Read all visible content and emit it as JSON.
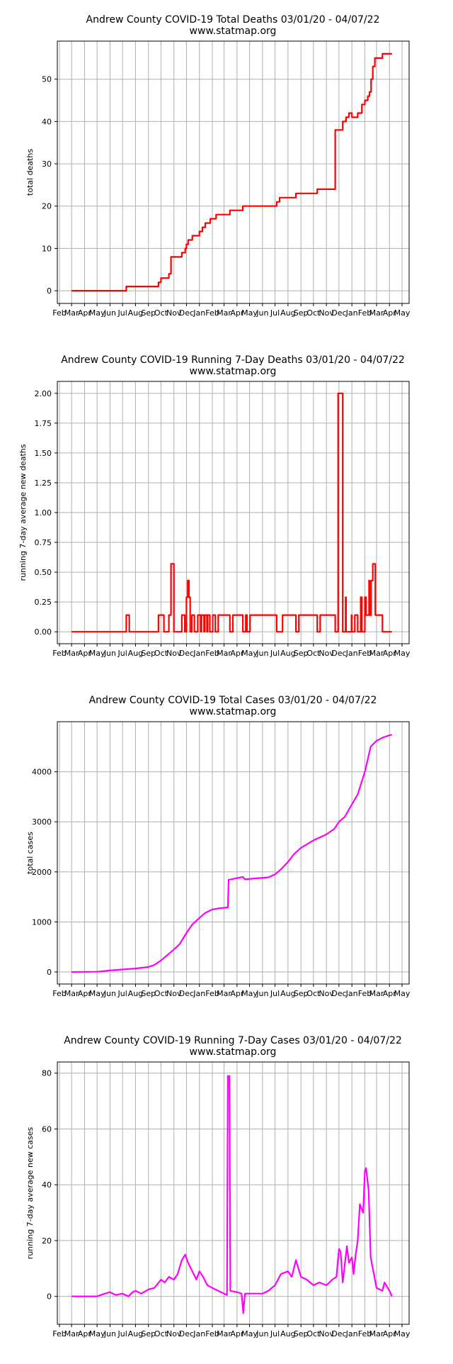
{
  "figure": {
    "colors": {
      "deaths": "#ff0000",
      "cases": "#ff00ff",
      "grid": "#b0b0b0",
      "axis": "#000000"
    }
  },
  "chart_data": [
    {
      "type": "line",
      "title": "Andrew County COVID-19 Total Deaths 03/01/20 - 04/07/22",
      "subtitle": "www.statmap.org",
      "xlabel": "",
      "ylabel": "total deaths",
      "ylim": [
        -3,
        59
      ],
      "yticks": [
        "0",
        "10",
        "20",
        "30",
        "40",
        "50"
      ],
      "ytick_values": [
        0,
        10,
        20,
        30,
        40,
        50
      ],
      "xticks": [
        "Feb",
        "Mar",
        "Apr",
        "May",
        "Jun",
        "Jul",
        "Aug",
        "Sep",
        "Oct",
        "Nov",
        "Dec",
        "Jan",
        "Feb",
        "Mar",
        "Apr",
        "May",
        "Jun",
        "Jul",
        "Aug",
        "Sep",
        "Oct",
        "Nov",
        "Dec",
        "Jan",
        "Feb",
        "Mar",
        "Apr",
        "May"
      ],
      "grid": true,
      "color": "#ff0000",
      "step": true,
      "series": [
        {
          "x": [
            "2020-03-01",
            "2020-07-10",
            "2020-09-25",
            "2020-10-01",
            "2020-10-20",
            "2020-10-25",
            "2020-11-20",
            "2020-11-28",
            "2020-12-01",
            "2020-12-05",
            "2020-12-15",
            "2021-01-01",
            "2021-01-08",
            "2021-01-15",
            "2021-01-27",
            "2021-02-10",
            "2021-03-15",
            "2021-04-15",
            "2021-04-25",
            "2021-07-05",
            "2021-07-12",
            "2021-08-20",
            "2021-10-10",
            "2021-11-22",
            "2021-12-10",
            "2021-12-18",
            "2021-12-25",
            "2022-01-01",
            "2022-01-15",
            "2022-01-25",
            "2022-02-01",
            "2022-02-08",
            "2022-02-12",
            "2022-02-16",
            "2022-02-20",
            "2022-02-25",
            "2022-03-15",
            "2022-04-07"
          ],
          "values": [
            0,
            1,
            2,
            3,
            4,
            8,
            9,
            10,
            11,
            12,
            13,
            14,
            15,
            16,
            17,
            18,
            19,
            20,
            20,
            21,
            22,
            23,
            24,
            38,
            40,
            41,
            42,
            41,
            42,
            44,
            45,
            46,
            47,
            50,
            53,
            55,
            56,
            56
          ]
        }
      ]
    },
    {
      "type": "line",
      "title": "Andrew County COVID-19 Running 7-Day Deaths 03/01/20 - 04/07/22",
      "subtitle": "www.statmap.org",
      "xlabel": "",
      "ylabel": "running 7-day average new deaths",
      "ylim": [
        -0.1,
        2.1
      ],
      "yticks": [
        "0.00",
        "0.25",
        "0.50",
        "0.75",
        "1.00",
        "1.25",
        "1.50",
        "1.75",
        "2.00"
      ],
      "ytick_values": [
        0,
        0.25,
        0.5,
        0.75,
        1.0,
        1.25,
        1.5,
        1.75,
        2.0
      ],
      "xticks": [
        "Feb",
        "Mar",
        "Apr",
        "May",
        "Jun",
        "Jul",
        "Aug",
        "Sep",
        "Oct",
        "Nov",
        "Dec",
        "Jan",
        "Feb",
        "Mar",
        "Apr",
        "May",
        "Jun",
        "Jul",
        "Aug",
        "Sep",
        "Oct",
        "Nov",
        "Dec",
        "Jan",
        "Feb",
        "Mar",
        "Apr",
        "May"
      ],
      "grid": true,
      "color": "#ff0000",
      "step": true,
      "series": [
        {
          "x": [
            "2020-03-01",
            "2020-07-10",
            "2020-07-17",
            "2020-09-25",
            "2020-10-08",
            "2020-10-20",
            "2020-10-25",
            "2020-11-01",
            "2020-11-20",
            "2020-11-27",
            "2020-12-01",
            "2020-12-04",
            "2020-12-07",
            "2020-12-10",
            "2020-12-14",
            "2020-12-20",
            "2020-12-28",
            "2021-01-04",
            "2021-01-06",
            "2021-01-12",
            "2021-01-14",
            "2021-01-19",
            "2021-01-21",
            "2021-01-26",
            "2021-02-02",
            "2021-02-08",
            "2021-02-15",
            "2021-03-15",
            "2021-03-22",
            "2021-04-15",
            "2021-04-22",
            "2021-04-25",
            "2021-05-02",
            "2021-07-05",
            "2021-07-19",
            "2021-08-20",
            "2021-08-27",
            "2021-10-10",
            "2021-10-17",
            "2021-11-22",
            "2021-11-29",
            "2021-12-10",
            "2021-12-17",
            "2021-12-18",
            "2021-12-31",
            "2022-01-01",
            "2022-01-08",
            "2022-01-15",
            "2022-01-22",
            "2022-01-25",
            "2022-02-01",
            "2022-02-04",
            "2022-02-11",
            "2022-02-12",
            "2022-02-16",
            "2022-02-20",
            "2022-02-26",
            "2022-03-01",
            "2022-03-15",
            "2022-03-22",
            "2022-04-07"
          ],
          "values": [
            0,
            0.14,
            0,
            0.14,
            0,
            0.14,
            0.57,
            0,
            0.14,
            0,
            0.29,
            0.43,
            0.29,
            0,
            0.14,
            0,
            0.14,
            0,
            0.14,
            0,
            0.14,
            0,
            0.14,
            0,
            0.14,
            0,
            0.14,
            0,
            0.14,
            0,
            0.14,
            0,
            0.14,
            0,
            0.14,
            0,
            0.14,
            0,
            0.14,
            0,
            2.0,
            0,
            0.29,
            0,
            0.14,
            0,
            0.14,
            0,
            0.29,
            0,
            0.29,
            0.14,
            0.43,
            0.14,
            0.43,
            0.57,
            0.14,
            0.14,
            0,
            0,
            0
          ]
        }
      ]
    },
    {
      "type": "line",
      "title": "Andrew County COVID-19 Total Cases 03/01/20 - 04/07/22",
      "subtitle": "www.statmap.org",
      "xlabel": "",
      "ylabel": "total cases",
      "ylim": [
        -240,
        5000
      ],
      "yticks": [
        "0",
        "1000",
        "2000",
        "3000",
        "4000"
      ],
      "ytick_values": [
        0,
        1000,
        2000,
        3000,
        4000
      ],
      "xticks": [
        "Feb",
        "Mar",
        "Apr",
        "May",
        "Jun",
        "Jul",
        "Aug",
        "Sep",
        "Oct",
        "Nov",
        "Dec",
        "Jan",
        "Feb",
        "Mar",
        "Apr",
        "May",
        "Jun",
        "Jul",
        "Aug",
        "Sep",
        "Oct",
        "Nov",
        "Dec",
        "Jan",
        "Feb",
        "Mar",
        "Apr",
        "May"
      ],
      "grid": true,
      "color": "#ff00ff",
      "step": false,
      "series": [
        {
          "x": [
            "2020-03-01",
            "2020-05-01",
            "2020-06-01",
            "2020-07-01",
            "2020-08-01",
            "2020-09-01",
            "2020-09-15",
            "2020-10-01",
            "2020-10-15",
            "2020-11-01",
            "2020-11-15",
            "2020-12-01",
            "2020-12-15",
            "2021-01-01",
            "2021-01-15",
            "2021-02-01",
            "2021-02-15",
            "2021-03-10",
            "2021-03-12",
            "2021-04-15",
            "2021-04-20",
            "2021-05-15",
            "2021-06-15",
            "2021-07-01",
            "2021-07-15",
            "2021-08-01",
            "2021-08-15",
            "2021-09-01",
            "2021-10-01",
            "2021-11-01",
            "2021-11-20",
            "2021-12-01",
            "2021-12-15",
            "2022-01-01",
            "2022-01-15",
            "2022-02-01",
            "2022-02-15",
            "2022-03-01",
            "2022-03-15",
            "2022-04-01",
            "2022-04-07"
          ],
          "values": [
            0,
            5,
            30,
            50,
            70,
            100,
            140,
            230,
            330,
            450,
            560,
            780,
            950,
            1080,
            1180,
            1250,
            1270,
            1290,
            1840,
            1900,
            1850,
            1870,
            1890,
            1950,
            2050,
            2200,
            2350,
            2480,
            2630,
            2750,
            2860,
            3000,
            3100,
            3350,
            3550,
            4000,
            4500,
            4620,
            4680,
            4730,
            4740
          ]
        }
      ]
    },
    {
      "type": "line",
      "title": "Andrew County COVID-19 Running 7-Day Cases 03/01/20 - 04/07/22",
      "subtitle": "www.statmap.org",
      "xlabel": "",
      "ylabel": "running 7-day average new cases",
      "ylim": [
        -10,
        84
      ],
      "yticks": [
        "0",
        "20",
        "40",
        "60",
        "80"
      ],
      "ytick_values": [
        0,
        20,
        40,
        60,
        80
      ],
      "xticks": [
        "Feb",
        "Mar",
        "Apr",
        "May",
        "Jun",
        "Jul",
        "Aug",
        "Sep",
        "Oct",
        "Nov",
        "Dec",
        "Jan",
        "Feb",
        "Mar",
        "Apr",
        "May",
        "Jun",
        "Jul",
        "Aug",
        "Sep",
        "Oct",
        "Nov",
        "Dec",
        "Jan",
        "Feb",
        "Mar",
        "Apr",
        "May"
      ],
      "grid": true,
      "color": "#ff00ff",
      "step": false,
      "series": [
        {
          "x": [
            "2020-03-01",
            "2020-05-01",
            "2020-05-20",
            "2020-06-01",
            "2020-06-15",
            "2020-07-01",
            "2020-07-15",
            "2020-07-25",
            "2020-08-01",
            "2020-08-15",
            "2020-09-01",
            "2020-09-15",
            "2020-10-01",
            "2020-10-10",
            "2020-10-20",
            "2020-11-01",
            "2020-11-10",
            "2020-11-20",
            "2020-11-28",
            "2020-12-05",
            "2020-12-15",
            "2020-12-25",
            "2021-01-01",
            "2021-01-10",
            "2021-01-20",
            "2021-02-01",
            "2021-02-15",
            "2021-03-01",
            "2021-03-08",
            "2021-03-10",
            "2021-03-14",
            "2021-03-16",
            "2021-04-01",
            "2021-04-12",
            "2021-04-16",
            "2021-04-20",
            "2021-04-25",
            "2021-05-15",
            "2021-06-01",
            "2021-06-15",
            "2021-07-01",
            "2021-07-15",
            "2021-08-01",
            "2021-08-10",
            "2021-08-20",
            "2021-09-01",
            "2021-09-15",
            "2021-10-01",
            "2021-10-15",
            "2021-11-01",
            "2021-11-15",
            "2021-11-25",
            "2021-12-01",
            "2021-12-05",
            "2021-12-10",
            "2021-12-20",
            "2021-12-25",
            "2022-01-01",
            "2022-01-05",
            "2022-01-10",
            "2022-01-15",
            "2022-01-20",
            "2022-01-28",
            "2022-02-01",
            "2022-02-04",
            "2022-02-10",
            "2022-02-15",
            "2022-03-01",
            "2022-03-15",
            "2022-03-20",
            "2022-04-01",
            "2022-04-07"
          ],
          "values": [
            0,
            0,
            1,
            1.5,
            0.5,
            1,
            0,
            1.5,
            2,
            1,
            2.5,
            3,
            6,
            5,
            7,
            6,
            8,
            13,
            15,
            12,
            9,
            6,
            9,
            7,
            4,
            3,
            2,
            1,
            0.5,
            79,
            79,
            2,
            1.5,
            1,
            -6,
            1,
            1,
            1,
            1,
            2,
            4,
            8,
            9,
            7,
            13,
            7,
            6,
            4,
            5,
            4,
            6,
            7,
            17,
            16,
            5,
            18,
            12,
            14,
            8,
            15,
            20,
            33,
            30,
            45,
            46,
            38,
            14,
            3,
            2,
            5,
            2,
            0
          ]
        }
      ]
    }
  ]
}
